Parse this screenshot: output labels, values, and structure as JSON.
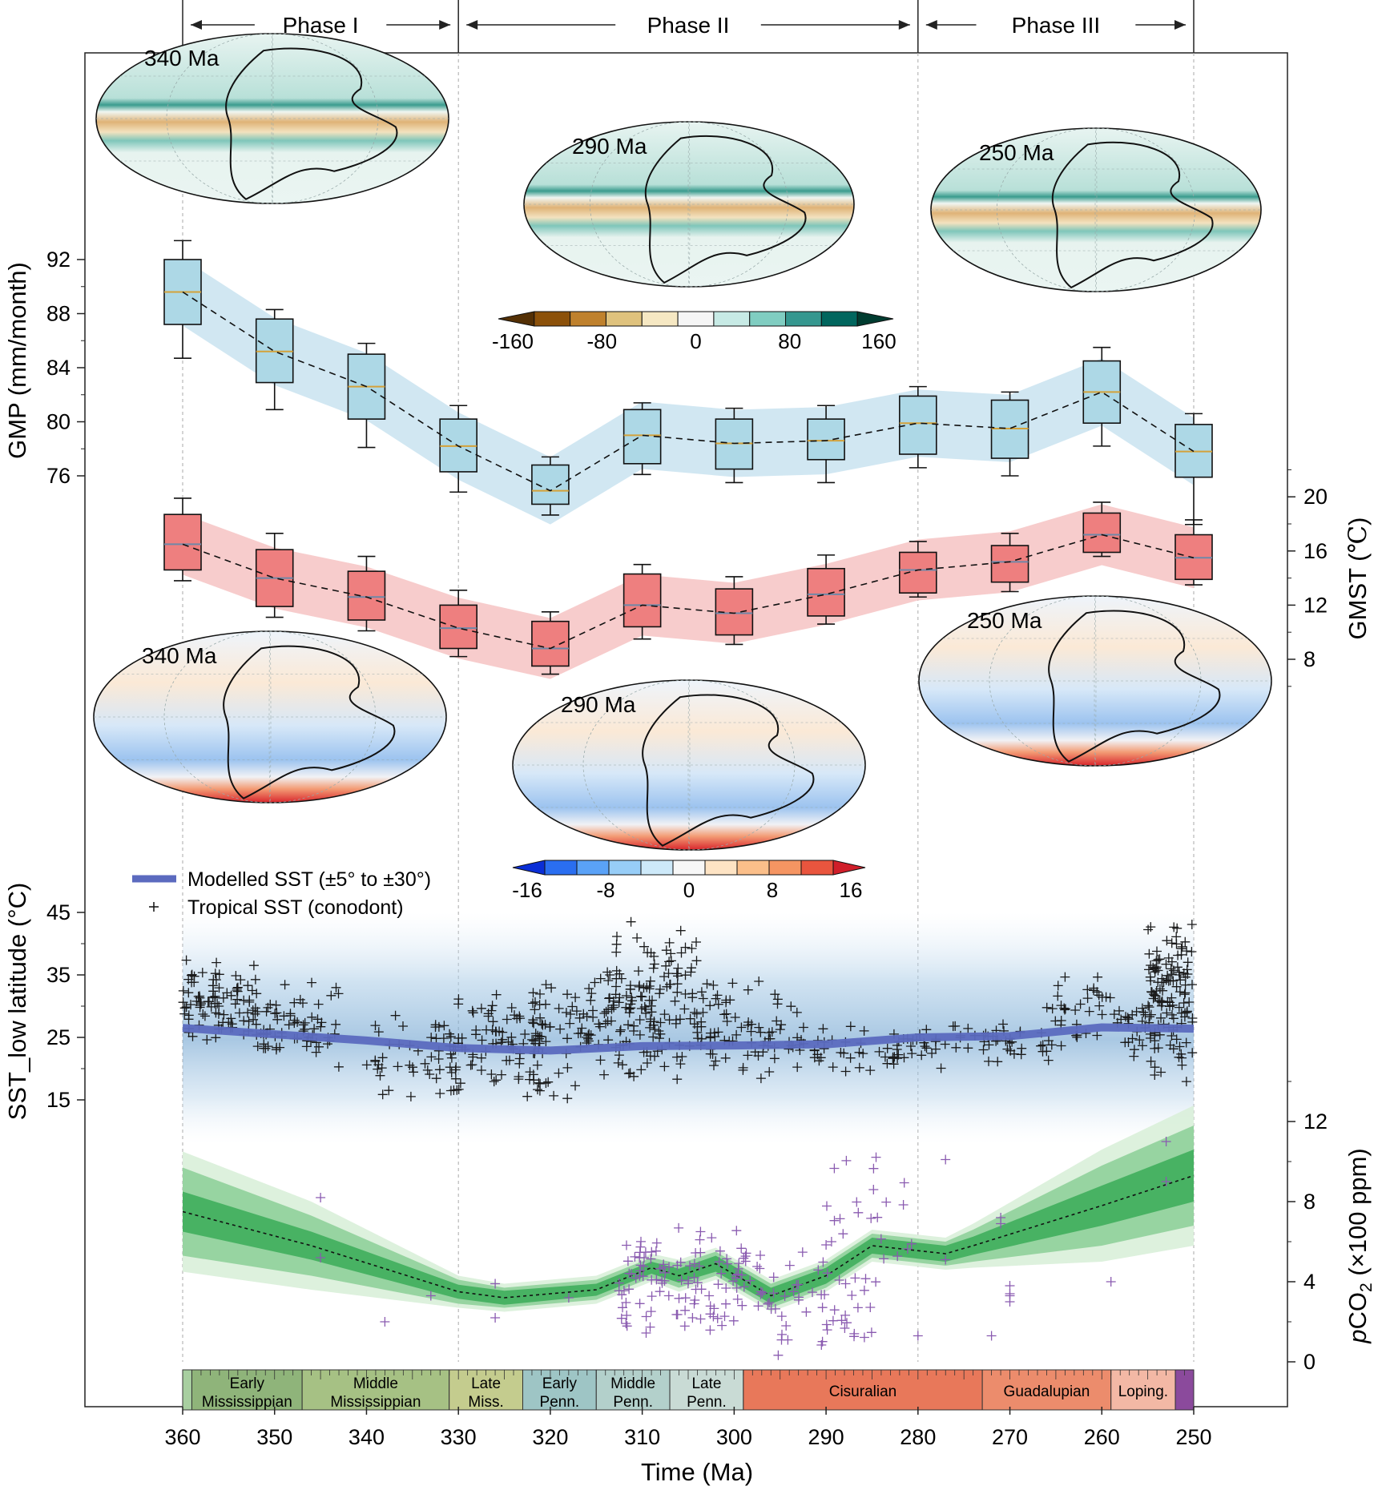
{
  "chart_data": {
    "type": "composite",
    "x_axis": {
      "label": "Time (Ma)",
      "range": [
        360,
        250
      ],
      "ticks": [
        360,
        350,
        340,
        330,
        320,
        310,
        300,
        290,
        280,
        270,
        260,
        250
      ]
    },
    "phases": [
      {
        "label": "Phase I",
        "start": 360,
        "end": 330
      },
      {
        "label": "Phase II",
        "start": 330,
        "end": 280
      },
      {
        "label": "Phase III",
        "start": 280,
        "end": 250
      }
    ],
    "gmp": {
      "ylabel": "GMP (mm/month)",
      "ticks": [
        76,
        80,
        84,
        88,
        92
      ],
      "ylim": [
        72,
        96
      ],
      "color": "#add8e6",
      "band_color": "#c9e3f0",
      "boxes": [
        {
          "age": 360,
          "min": 84.7,
          "q1": 87.2,
          "median": 89.6,
          "q3": 92.0,
          "max": 93.4
        },
        {
          "age": 350,
          "min": 80.9,
          "q1": 82.9,
          "median": 85.2,
          "q3": 87.6,
          "max": 88.3
        },
        {
          "age": 340,
          "min": 78.1,
          "q1": 80.2,
          "median": 82.6,
          "q3": 85.0,
          "max": 85.8
        },
        {
          "age": 330,
          "min": 74.8,
          "q1": 76.3,
          "median": 78.2,
          "q3": 80.2,
          "max": 81.2
        },
        {
          "age": 320,
          "min": 73.1,
          "q1": 73.9,
          "median": 74.9,
          "q3": 76.8,
          "max": 77.4
        },
        {
          "age": 310,
          "min": 76.1,
          "q1": 76.9,
          "median": 79.0,
          "q3": 80.9,
          "max": 81.4
        },
        {
          "age": 300,
          "min": 75.5,
          "q1": 76.5,
          "median": 78.4,
          "q3": 80.2,
          "max": 81.0
        },
        {
          "age": 290,
          "min": 75.5,
          "q1": 77.2,
          "median": 78.6,
          "q3": 80.2,
          "max": 81.2
        },
        {
          "age": 280,
          "min": 76.6,
          "q1": 77.6,
          "median": 79.9,
          "q3": 81.9,
          "max": 82.6
        },
        {
          "age": 270,
          "min": 76.0,
          "q1": 77.3,
          "median": 79.5,
          "q3": 81.6,
          "max": 82.2
        },
        {
          "age": 260,
          "min": 78.2,
          "q1": 79.9,
          "median": 82.2,
          "q3": 84.5,
          "max": 85.5
        },
        {
          "age": 250,
          "min": 72.4,
          "q1": 75.9,
          "median": 77.8,
          "q3": 79.8,
          "max": 80.6
        }
      ]
    },
    "gmst": {
      "ylabel": "GMST (°C)",
      "ticks": [
        8,
        12,
        16,
        20
      ],
      "ylim": [
        4,
        24
      ],
      "color": "#ee7f7f",
      "band_color": "#f6c3c3",
      "boxes": [
        {
          "age": 360,
          "min": 13.8,
          "q1": 14.6,
          "median": 16.5,
          "q3": 18.7,
          "max": 19.9
        },
        {
          "age": 350,
          "min": 11.1,
          "q1": 11.9,
          "median": 14.0,
          "q3": 16.1,
          "max": 17.3
        },
        {
          "age": 340,
          "min": 10.1,
          "q1": 10.9,
          "median": 12.6,
          "q3": 14.5,
          "max": 15.6
        },
        {
          "age": 330,
          "min": 8.2,
          "q1": 8.8,
          "median": 10.3,
          "q3": 12.0,
          "max": 13.1
        },
        {
          "age": 320,
          "min": 6.9,
          "q1": 7.5,
          "median": 8.8,
          "q3": 10.8,
          "max": 11.5
        },
        {
          "age": 310,
          "min": 9.5,
          "q1": 10.4,
          "median": 12.0,
          "q3": 14.3,
          "max": 15.0
        },
        {
          "age": 300,
          "min": 9.1,
          "q1": 9.8,
          "median": 11.4,
          "q3": 13.2,
          "max": 14.1
        },
        {
          "age": 290,
          "min": 10.6,
          "q1": 11.2,
          "median": 12.8,
          "q3": 14.7,
          "max": 15.7
        },
        {
          "age": 280,
          "min": 12.6,
          "q1": 12.9,
          "median": 14.6,
          "q3": 15.9,
          "max": 16.7
        },
        {
          "age": 270,
          "min": 13.0,
          "q1": 13.7,
          "median": 15.2,
          "q3": 16.4,
          "max": 17.3
        },
        {
          "age": 260,
          "min": 15.6,
          "q1": 15.9,
          "median": 17.2,
          "q3": 18.8,
          "max": 19.6
        },
        {
          "age": 250,
          "min": 13.5,
          "q1": 13.9,
          "median": 15.5,
          "q3": 17.2,
          "max": 18.3
        }
      ]
    },
    "sst": {
      "ylabel": "SST_low latitude (°C)",
      "ticks": [
        15,
        25,
        35,
        45
      ],
      "ylim": [
        1,
        47
      ],
      "legend": [
        {
          "label": "Modelled SST (±5° to ±30°)",
          "symbol": "line",
          "color": "#5b6abf"
        },
        {
          "label": "Tropical SST (conodont)",
          "symbol": "plus",
          "color": "#111111"
        }
      ],
      "modelled": {
        "age": [
          360,
          350,
          340,
          330,
          320,
          310,
          300,
          290,
          280,
          270,
          260,
          250
        ],
        "value": [
          26.5,
          25.5,
          24.5,
          23.3,
          22.9,
          23.6,
          23.7,
          23.9,
          25.0,
          25.2,
          26.6,
          26.4
        ]
      },
      "conodont_clusters": [
        {
          "age_range": [
            360,
            352
          ],
          "sst_range": [
            24,
            38
          ],
          "n": 90
        },
        {
          "age_range": [
            352,
            343
          ],
          "sst_range": [
            20,
            35
          ],
          "n": 70
        },
        {
          "age_range": [
            340,
            330
          ],
          "sst_range": [
            14,
            30
          ],
          "n": 45
        },
        {
          "age_range": [
            331,
            321
          ],
          "sst_range": [
            15,
            33
          ],
          "n": 90
        },
        {
          "age_range": [
            322,
            314
          ],
          "sst_range": [
            13,
            38
          ],
          "n": 70
        },
        {
          "age_range": [
            314,
            304
          ],
          "sst_range": [
            17,
            45
          ],
          "n": 150
        },
        {
          "age_range": [
            304,
            293
          ],
          "sst_range": [
            18,
            35
          ],
          "n": 80
        },
        {
          "age_range": [
            293,
            280
          ],
          "sst_range": [
            19,
            27
          ],
          "n": 50
        },
        {
          "age_range": [
            280,
            266
          ],
          "sst_range": [
            20,
            28
          ],
          "n": 50
        },
        {
          "age_range": [
            266,
            255
          ],
          "sst_range": [
            20,
            36
          ],
          "n": 60
        },
        {
          "age_range": [
            255,
            250
          ],
          "sst_range": [
            17,
            45
          ],
          "n": 130
        }
      ]
    },
    "pco2": {
      "ylabel": "pCO₂ (×100 ppm)",
      "ticks": [
        0,
        4,
        8,
        12
      ],
      "ylim": [
        -1,
        14
      ],
      "median": {
        "age": [
          360,
          346,
          330,
          325,
          315,
          309,
          306,
          302,
          296,
          290,
          285,
          277,
          274,
          260,
          250
        ],
        "value": [
          7.5,
          5.8,
          3.5,
          3.2,
          3.6,
          4.7,
          4.3,
          4.9,
          3.3,
          4.3,
          5.8,
          5.4,
          5.8,
          7.8,
          9.3
        ]
      },
      "band_inner_halfwidth": [
        1.0,
        0.7,
        0.35,
        0.35,
        0.3,
        0.3,
        0.35,
        0.4,
        0.4,
        0.4,
        0.4,
        0.4,
        0.45,
        1.0,
        1.3
      ],
      "band_outer_halfwidth": [
        2.2,
        1.5,
        0.6,
        0.5,
        0.5,
        0.5,
        0.6,
        0.6,
        0.6,
        0.6,
        0.6,
        0.6,
        0.8,
        2.0,
        2.5
      ],
      "band_faint_halfwidth": [
        3.0,
        2.2,
        0.8,
        0.7,
        0.7,
        0.7,
        0.8,
        0.8,
        0.8,
        0.8,
        0.8,
        0.8,
        1.1,
        2.8,
        3.5
      ],
      "proxy_clusters": [
        {
          "age_range": [
            313,
            297
          ],
          "pco2_range": [
            1,
            7
          ],
          "n": 120
        },
        {
          "age_range": [
            297,
            285
          ],
          "pco2_range": [
            0,
            6
          ],
          "n": 50
        },
        {
          "age_range": [
            290,
            280
          ],
          "pco2_range": [
            3,
            11
          ],
          "n": 25
        }
      ],
      "proxy_points": [
        [
          345,
          8.2
        ],
        [
          345,
          5.2
        ],
        [
          338,
          2.0
        ],
        [
          333,
          3.3
        ],
        [
          326,
          3.9
        ],
        [
          326,
          2.2
        ],
        [
          318,
          3.2
        ],
        [
          280,
          1.3
        ],
        [
          277,
          10.1
        ],
        [
          277,
          5.1
        ],
        [
          272,
          1.3
        ],
        [
          270,
          3.4
        ],
        [
          270,
          3.0
        ],
        [
          270,
          3.8
        ],
        [
          270,
          3.3
        ],
        [
          271,
          7.2
        ],
        [
          271,
          6.9
        ],
        [
          259,
          4.0
        ],
        [
          253,
          11.0
        ],
        [
          253,
          9.0
        ]
      ]
    },
    "maps": [
      {
        "label": "340 Ma",
        "variable": "precipitation"
      },
      {
        "label": "290 Ma",
        "variable": "precipitation"
      },
      {
        "label": "250 Ma",
        "variable": "precipitation"
      },
      {
        "label": "340 Ma",
        "variable": "temperature"
      },
      {
        "label": "290 Ma",
        "variable": "temperature"
      },
      {
        "label": "250 Ma",
        "variable": "temperature"
      }
    ],
    "colorbars": [
      {
        "ticks": [
          "-160",
          "-80",
          "0",
          "80",
          "160"
        ],
        "colors": [
          "#543005",
          "#8c510a",
          "#bf812d",
          "#dfc27d",
          "#f6e8c3",
          "#f5f5f5",
          "#c7eae5",
          "#80cdc1",
          "#35978f",
          "#01665e",
          "#003c30"
        ]
      },
      {
        "ticks": [
          "-16",
          "-8",
          "0",
          "8",
          "16"
        ],
        "colors": [
          "#0a2ed6",
          "#2a6ef0",
          "#5aa2f7",
          "#97cdf7",
          "#cde9f9",
          "#f7f7f7",
          "#fde3c4",
          "#fbbf8a",
          "#f59562",
          "#e9553e",
          "#d01e2a"
        ]
      }
    ],
    "timescale": [
      {
        "label": "",
        "start": 360,
        "end": 359,
        "color": "#a8cfa0"
      },
      {
        "label": "Early\nMississippian",
        "start": 359,
        "end": 347,
        "color": "#8fb47a"
      },
      {
        "label": "Middle\nMississippian",
        "start": 347,
        "end": 331,
        "color": "#a6c184"
      },
      {
        "label": "Late\nMiss.",
        "start": 331,
        "end": 323,
        "color": "#c4cc8e"
      },
      {
        "label": "Early\nPenn.",
        "start": 323,
        "end": 315,
        "color": "#9ec5c5"
      },
      {
        "label": "Middle\nPenn.",
        "start": 315,
        "end": 307,
        "color": "#b3d0cb"
      },
      {
        "label": "Late\nPenn.",
        "start": 307,
        "end": 299,
        "color": "#c9dbd5"
      },
      {
        "label": "Cisuralian",
        "start": 299,
        "end": 273,
        "color": "#e8785a"
      },
      {
        "label": "Guadalupian",
        "start": 273,
        "end": 259,
        "color": "#ec8c6c"
      },
      {
        "label": "Loping.",
        "start": 259,
        "end": 252,
        "color": "#f3b8a5"
      },
      {
        "label": "",
        "start": 252,
        "end": 250,
        "color": "#8b4a9c"
      }
    ]
  }
}
